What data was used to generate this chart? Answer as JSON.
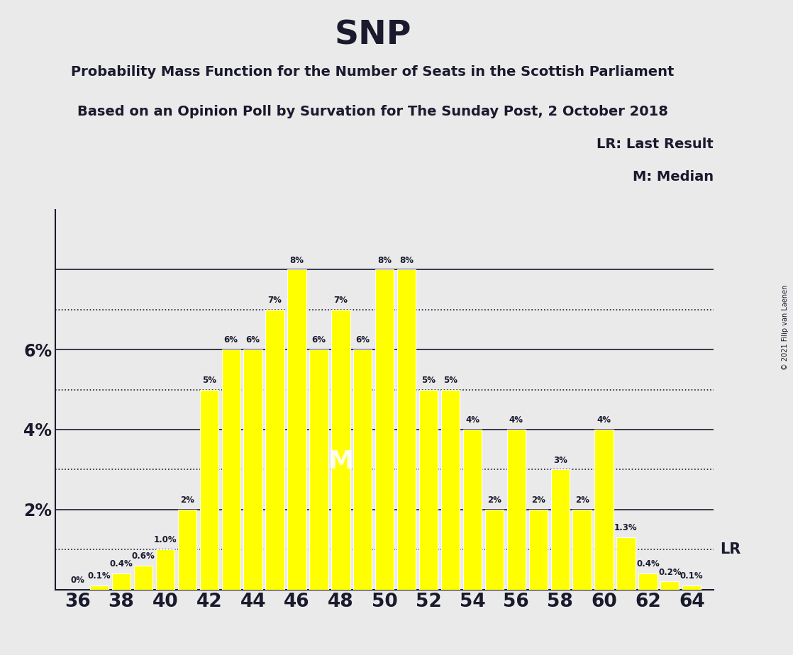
{
  "title": "SNP",
  "subtitle1": "Probability Mass Function for the Number of Seats in the Scottish Parliament",
  "subtitle2": "Based on an Opinion Poll by Survation for The Sunday Post, 2 October 2018",
  "copyright": "© 2021 Filip van Laenen",
  "lr_label": "LR: Last Result",
  "m_label": "M: Median",
  "seats": [
    36,
    37,
    38,
    39,
    40,
    41,
    42,
    43,
    44,
    45,
    46,
    47,
    48,
    49,
    50,
    51,
    52,
    53,
    54,
    55,
    56,
    57,
    58,
    59,
    60,
    61,
    62,
    63,
    64
  ],
  "values": [
    0.0,
    0.1,
    0.4,
    0.6,
    1.0,
    2.0,
    5.0,
    6.0,
    6.0,
    7.0,
    8.0,
    6.0,
    7.0,
    6.0,
    8.0,
    8.0,
    5.0,
    5.0,
    4.0,
    2.0,
    4.0,
    2.0,
    3.0,
    2.0,
    4.0,
    1.3,
    0.4,
    0.2,
    0.1
  ],
  "bar_color": "#FFFF00",
  "bg_color": "#EAEAEA",
  "plot_bg_color": "#EAEAEA",
  "text_color": "#1a1a2e",
  "lr_y": 1.0,
  "median_seat": 48,
  "ylim": [
    0,
    9.5
  ],
  "xlim": [
    35,
    65
  ],
  "solid_hlines": [
    2,
    4,
    6,
    8
  ],
  "dotted_hlines": [
    1,
    3,
    5,
    7
  ],
  "ylabel_ticks": [
    2,
    4,
    6
  ],
  "xtick_seats": [
    36,
    38,
    40,
    42,
    44,
    46,
    48,
    50,
    52,
    54,
    56,
    58,
    60,
    62,
    64
  ],
  "bar_labels": {
    "37": "0.1%",
    "38": "0.4%",
    "39": "0.6%",
    "40": "1.0%",
    "41": "2%",
    "42": "5%",
    "43": "6%",
    "44": "6%",
    "45": "7%",
    "46": "8%",
    "47": "6%",
    "48": "7%",
    "49": "6%",
    "50": "8%",
    "51": "8%",
    "52": "5%",
    "53": "5%",
    "54": "4%",
    "55": "2%",
    "56": "4%",
    "57": "2%",
    "58": "3%",
    "59": "2%",
    "60": "4%",
    "61": "1.3%",
    "62": "0.4%",
    "63": "0.2%",
    "64": "0.1%",
    "36": "0%"
  }
}
